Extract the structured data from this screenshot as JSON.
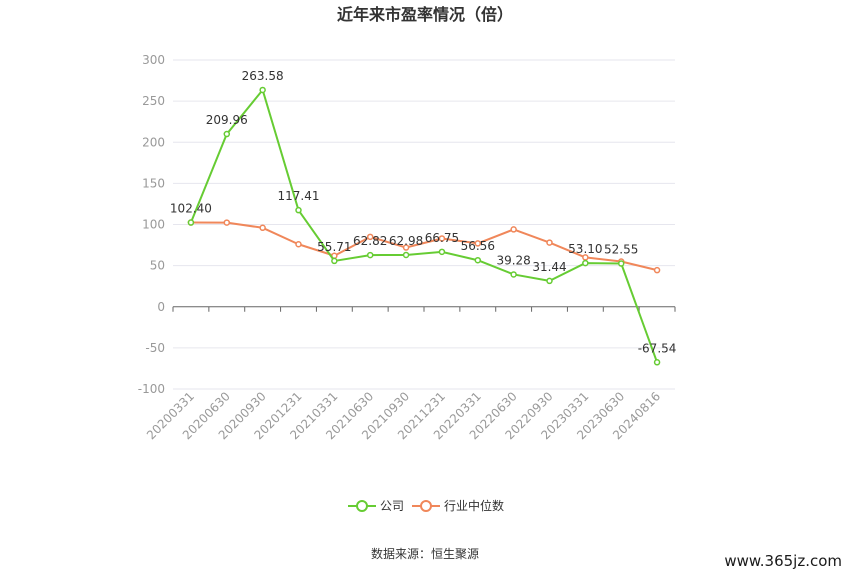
{
  "chart_data": {
    "type": "line",
    "title": "近年来市盈率情况（倍）",
    "categories": [
      "20200331",
      "20200630",
      "20200930",
      "20201231",
      "20210331",
      "20210630",
      "20210930",
      "20211231",
      "20220331",
      "20220630",
      "20220930",
      "20230331",
      "20230630",
      "20240816"
    ],
    "series": [
      {
        "name": "公司",
        "color": "#66cc33",
        "values": [
          102.4,
          209.96,
          263.58,
          117.41,
          55.71,
          62.82,
          62.98,
          66.75,
          56.56,
          39.28,
          31.44,
          53.1,
          52.55,
          -67.54
        ],
        "labels": [
          "102.40",
          "209.96",
          "263.58",
          "117.41",
          "55.71",
          "62.82",
          "62.98",
          "66.75",
          "56.56",
          "39.28",
          "31.44",
          "53.10",
          "52.55",
          "-67.54"
        ]
      },
      {
        "name": "行业中位数",
        "color": "#f0875a",
        "values": [
          102.4,
          102.3,
          96.0,
          76.0,
          62.0,
          85.0,
          72.0,
          83.0,
          77.0,
          94.0,
          78.0,
          60.0,
          55.0,
          44.5
        ]
      }
    ],
    "ylim": [
      -100,
      300
    ],
    "yticks": [
      -100,
      -50,
      0,
      50,
      100,
      150,
      200,
      250,
      300
    ],
    "grid": true,
    "legend": "bottom"
  },
  "source": "数据来源：恒生聚源",
  "watermark": "www.365jz.com"
}
